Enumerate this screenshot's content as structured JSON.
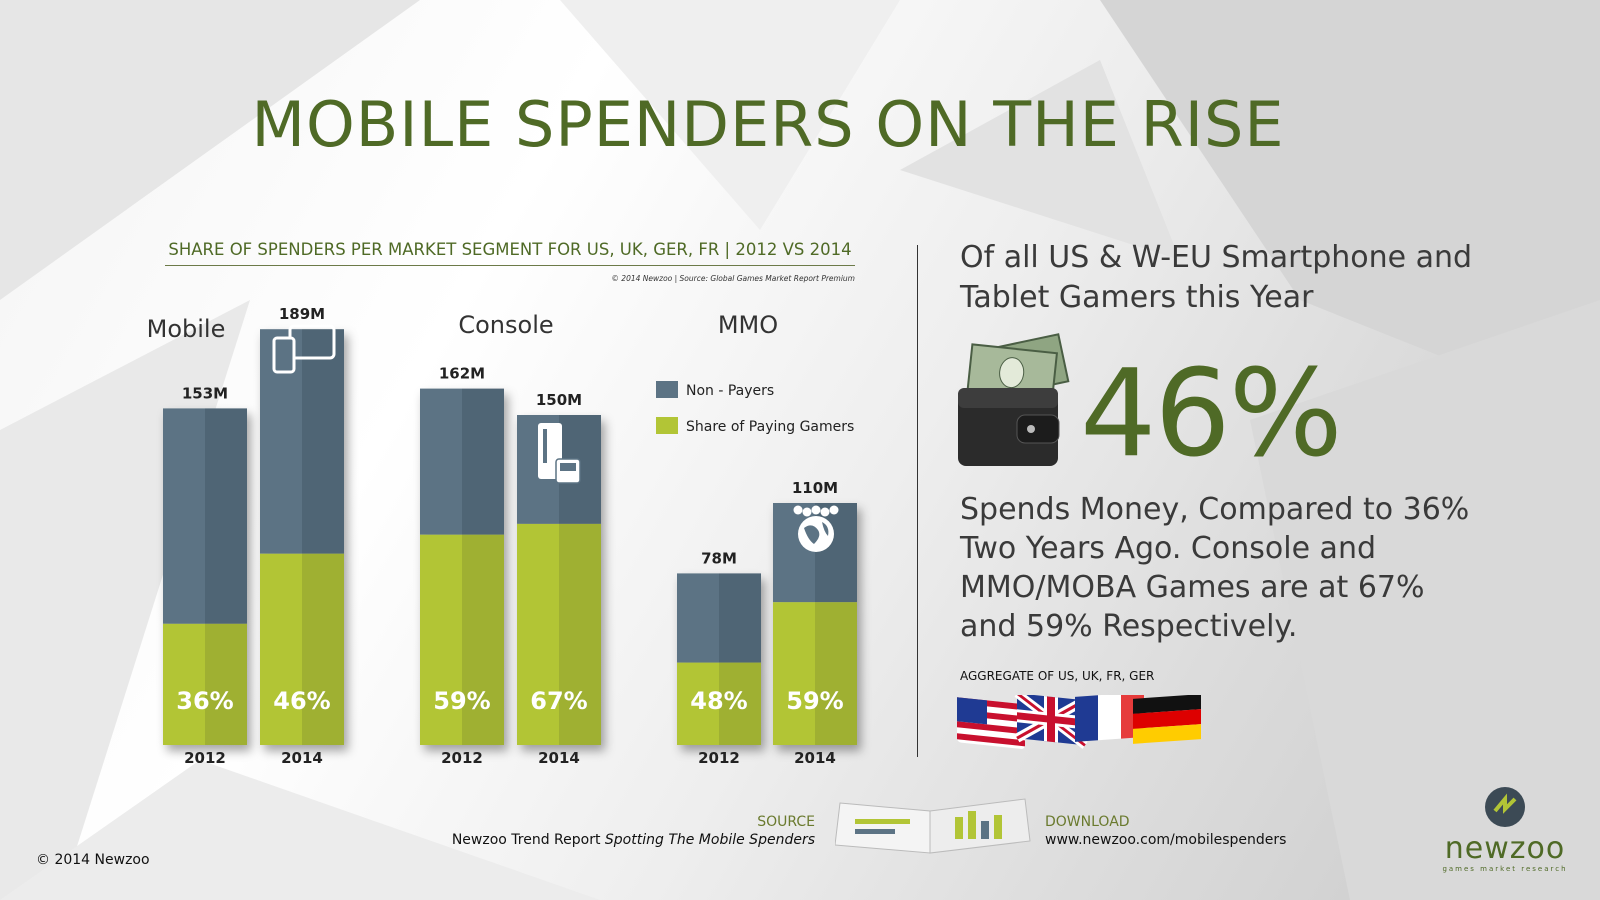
{
  "title": "MOBILE SPENDERS ON THE RISE",
  "chart_subtitle": "SHARE OF SPENDERS PER MARKET SEGMENT FOR US, UK, GER, FR | 2012 VS 2014",
  "chart_credit": "© 2014 Newzoo  |  Source: Global Games Market Report Premium",
  "colors": {
    "non_payers": "#5c7384",
    "paying": "#b2c536",
    "title_green": "#4f6a26"
  },
  "chart_data": {
    "type": "bar",
    "title": "SHARE OF SPENDERS PER MARKET SEGMENT FOR US, UK, GER, FR | 2012 VS 2014",
    "legend": [
      "Non - Payers",
      "Share of Paying Gamers"
    ],
    "groups": [
      {
        "name": "Mobile",
        "icon": "tablet-phone-icon",
        "bars": [
          {
            "year": "2012",
            "total": 153,
            "total_label": "153M",
            "paying_pct": 36,
            "pct_label": "36%"
          },
          {
            "year": "2014",
            "total": 189,
            "total_label": "189M",
            "paying_pct": 46,
            "pct_label": "46%"
          }
        ]
      },
      {
        "name": "Console",
        "icon": "console-icon",
        "bars": [
          {
            "year": "2012",
            "total": 162,
            "total_label": "162M",
            "paying_pct": 59,
            "pct_label": "59%"
          },
          {
            "year": "2014",
            "total": 150,
            "total_label": "150M",
            "paying_pct": 67,
            "pct_label": "67%"
          }
        ]
      },
      {
        "name": "MMO",
        "icon": "globe-people-icon",
        "bars": [
          {
            "year": "2012",
            "total": 78,
            "total_label": "78M",
            "paying_pct": 48,
            "pct_label": "48%"
          },
          {
            "year": "2014",
            "total": 110,
            "total_label": "110M",
            "paying_pct": 59,
            "pct_label": "59%"
          }
        ]
      }
    ],
    "unit": "M players"
  },
  "right": {
    "headline": "Of all US & W-EU Smartphone and Tablet Gamers this Year",
    "big_percent": "46%",
    "body": "Spends Money, Compared to 36% Two Years Ago. Console and MMO/MOBA Games are at 67% and 59% Respectively.",
    "aggregate": "AGGREGATE OF US, UK, FR, GER",
    "flags": [
      "us-flag-icon",
      "uk-flag-icon",
      "france-flag-icon",
      "germany-flag-icon"
    ]
  },
  "footer": {
    "source_label": "SOURCE",
    "source_text_plain": "Newzoo Trend Report ",
    "source_text_italic": "Spotting The Mobile Spenders",
    "download_label": "DOWNLOAD",
    "download_url": "www.newzoo.com/mobilespenders",
    "copyright": "© 2014 Newzoo",
    "logo_word": "newzoo",
    "logo_tagline": "games market research"
  }
}
